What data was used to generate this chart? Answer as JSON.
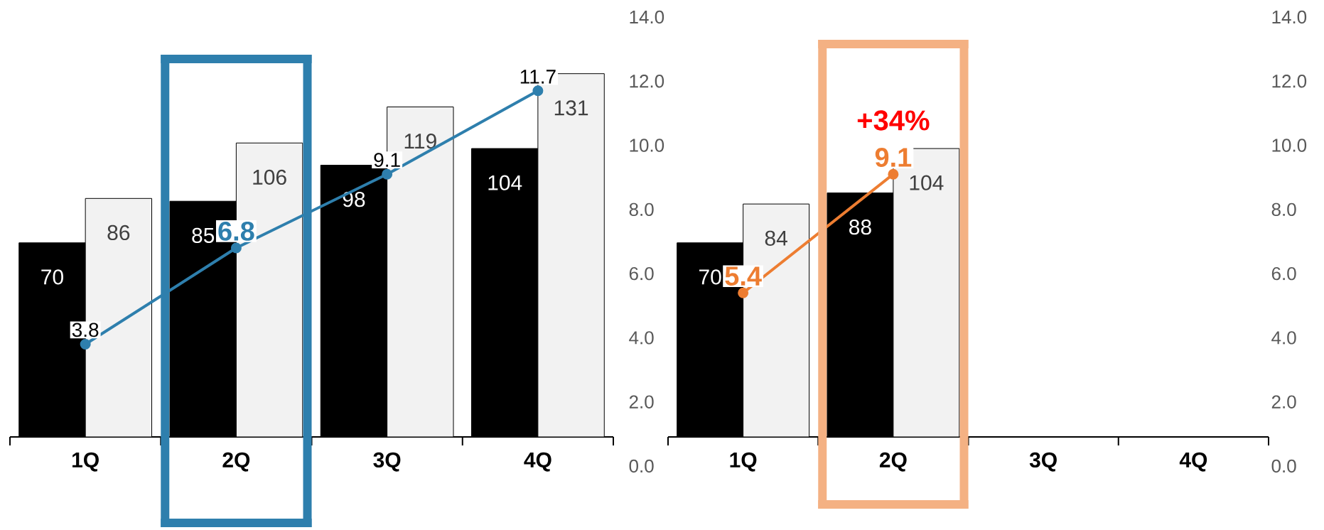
{
  "chart_data": [
    {
      "type": "bar",
      "categories": [
        "1Q",
        "2Q",
        "3Q",
        "4Q"
      ],
      "series": [
        {
          "axis": "y2",
          "color": "#000000",
          "values": [
            70,
            85,
            98,
            104
          ]
        },
        {
          "axis": "y2",
          "color": "#f2f2f2",
          "values": [
            86,
            106,
            119,
            131
          ]
        },
        {
          "type": "line",
          "color": "#2e7fad",
          "values": [
            3.8,
            6.8,
            9.1,
            11.7
          ],
          "value_labels": [
            "3.8",
            "6.8",
            "9.1",
            "11.7"
          ]
        }
      ],
      "ylim": [
        0,
        14
      ],
      "yticks": [
        {
          "value": 0,
          "label": "0.0"
        },
        {
          "value": 2,
          "label": "2.0"
        },
        {
          "value": 4,
          "label": "4.0"
        },
        {
          "value": 6,
          "label": "6.0"
        },
        {
          "value": 8,
          "label": "8.0"
        },
        {
          "value": 10,
          "label": "10.0"
        },
        {
          "value": 12,
          "label": "12.0"
        },
        {
          "value": 14,
          "label": "14.0"
        }
      ],
      "data_labels": true,
      "marker": "circle"
    },
    {
      "type": "bar",
      "categories": [
        "1Q",
        "2Q",
        "3Q",
        "4Q"
      ],
      "series": [
        {
          "axis": "y2",
          "color": "#000000",
          "values": [
            70,
            88,
            null,
            null
          ]
        },
        {
          "axis": "y2",
          "color": "#f2f2f2",
          "values": [
            84,
            104,
            null,
            null
          ]
        },
        {
          "type": "line",
          "color": "#ed7d31",
          "values": [
            5.4,
            9.1,
            null,
            null
          ],
          "value_labels": [
            "5.4",
            "9.1",
            null,
            null
          ]
        }
      ],
      "ylim": [
        0,
        14
      ],
      "yticks": [
        {
          "value": 0,
          "label": "0.0"
        },
        {
          "value": 2,
          "label": "2.0"
        },
        {
          "value": 4,
          "label": "4.0"
        },
        {
          "value": 6,
          "label": "6.0"
        },
        {
          "value": 8,
          "label": "8.0"
        },
        {
          "value": 10,
          "label": "10.0"
        },
        {
          "value": 12,
          "label": "12.0"
        },
        {
          "value": 14,
          "label": "14.0"
        }
      ],
      "data_labels": true,
      "marker": "circle",
      "annotations": [
        {
          "text": "+34%",
          "x": "2Q",
          "y": 9.1
        }
      ]
    }
  ]
}
